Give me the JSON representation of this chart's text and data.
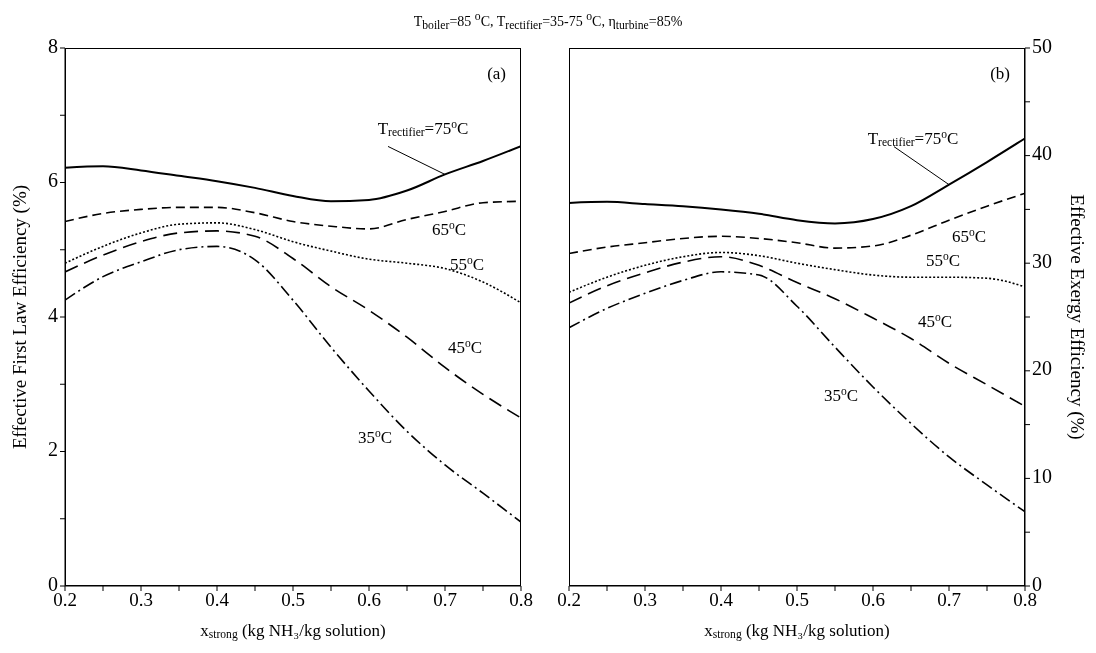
{
  "chart_data": [
    {
      "type": "line",
      "title": "T$_{boiler}$=85 $^{o}$C, T$_{rectifier}$=35-75 $^{o}$C, η$_{turbine}$=85%",
      "xlabel": "x$_{strong}$ (kg NH₃/kg solution)",
      "ylabel": "Effective First Law Efficiency (%)",
      "annotations": [
        "(a)"
      ],
      "x": [
        0.2,
        0.25,
        0.3,
        0.35,
        0.4,
        0.45,
        0.5,
        0.55,
        0.6,
        0.65,
        0.7,
        0.75,
        0.8
      ],
      "xlim": [
        0.2,
        0.8
      ],
      "xticks": [
        0.2,
        {
          "value": 0.25,
          "label": null
        },
        0.3,
        {
          "value": 0.35,
          "label": null
        },
        0.4,
        {
          "value": 0.45,
          "label": null
        },
        0.5,
        {
          "value": 0.55,
          "label": null
        },
        0.6,
        {
          "value": 0.65,
          "label": null
        },
        0.7,
        {
          "value": 0.75,
          "label": null
        },
        0.8
      ],
      "ylim": [
        0,
        8
      ],
      "yticks": [
        0,
        {
          "value": 1,
          "label": null
        },
        2,
        {
          "value": 3,
          "label": null
        },
        4,
        {
          "value": 5,
          "label": null
        },
        6,
        {
          "value": 7,
          "label": null
        },
        8
      ],
      "grid": false,
      "series": [
        {
          "name": "T$_{rectifier}$=75$^{o}$C",
          "color": "#000000",
          "line_style": "solid",
          "values": [
            6.22,
            6.24,
            6.18,
            6.1,
            6.02,
            5.92,
            5.8,
            5.72,
            5.74,
            5.88,
            6.12,
            6.32,
            6.54
          ]
        },
        {
          "name": "65$^{o}$C",
          "color": "#000000",
          "line_style": "dashed",
          "values": [
            5.42,
            5.54,
            5.6,
            5.63,
            5.63,
            5.55,
            5.42,
            5.35,
            5.31,
            5.45,
            5.57,
            5.7,
            5.72
          ]
        },
        {
          "name": "55$^{o}$C",
          "color": "#000000",
          "line_style": "dotted",
          "values": [
            4.8,
            5.05,
            5.25,
            5.38,
            5.4,
            5.3,
            5.12,
            4.98,
            4.86,
            4.8,
            4.72,
            4.52,
            4.21
          ]
        },
        {
          "name": "45$^{o}$C",
          "color": "#000000",
          "line_style": "dashed",
          "values": [
            4.67,
            4.92,
            5.12,
            5.25,
            5.28,
            5.2,
            4.87,
            4.45,
            4.1,
            3.7,
            3.25,
            2.85,
            2.5
          ]
        },
        {
          "name": "35$^{o}$C",
          "color": "#000000",
          "line_style": "dashed",
          "values": [
            4.25,
            4.6,
            4.82,
            5.0,
            5.05,
            4.85,
            4.25,
            3.55,
            2.9,
            2.3,
            1.8,
            1.38,
            0.95
          ]
        }
      ]
    },
    {
      "type": "line",
      "xlabel": "x$_{strong}$ (kg NH₃/kg solution)",
      "ylabel": "Effective Exergy Efficiency (%)",
      "annotations": [
        "(b)"
      ],
      "x": [
        0.2,
        0.25,
        0.3,
        0.35,
        0.4,
        0.45,
        0.5,
        0.55,
        0.6,
        0.65,
        0.7,
        0.75,
        0.8
      ],
      "xlim": [
        0.2,
        0.8
      ],
      "xticks": [
        0.2,
        {
          "value": 0.25,
          "label": null
        },
        0.3,
        {
          "value": 0.35,
          "label": null
        },
        0.4,
        {
          "value": 0.45,
          "label": null
        },
        0.5,
        {
          "value": 0.55,
          "label": null
        },
        0.6,
        {
          "value": 0.65,
          "label": null
        },
        0.7,
        {
          "value": 0.75,
          "label": null
        },
        0.8
      ],
      "ylim": [
        0,
        50
      ],
      "yticks": [
        0,
        {
          "value": 5,
          "label": null
        },
        10,
        {
          "value": 15,
          "label": null
        },
        20,
        {
          "value": 25,
          "label": null
        },
        30,
        {
          "value": 35,
          "label": null
        },
        40,
        {
          "value": 45,
          "label": null
        },
        50
      ],
      "grid": false,
      "series": [
        {
          "name": "T$_{rectifier}$=75$^{o}$C",
          "color": "#000000",
          "line_style": "solid",
          "values": [
            35.6,
            35.7,
            35.5,
            35.3,
            35.0,
            34.6,
            34.0,
            33.7,
            34.1,
            35.3,
            37.3,
            39.4,
            41.6
          ]
        },
        {
          "name": "65$^{o}$C",
          "color": "#000000",
          "line_style": "dashed",
          "values": [
            30.9,
            31.5,
            31.9,
            32.3,
            32.5,
            32.3,
            31.9,
            31.4,
            31.6,
            32.6,
            34.0,
            35.3,
            36.5
          ]
        },
        {
          "name": "55$^{o}$C",
          "color": "#000000",
          "line_style": "dotted",
          "values": [
            27.3,
            28.7,
            29.8,
            30.6,
            31.0,
            30.7,
            30.0,
            29.4,
            28.9,
            28.7,
            28.7,
            28.6,
            27.8
          ]
        },
        {
          "name": "45$^{o}$C",
          "color": "#000000",
          "line_style": "dashed",
          "values": [
            26.3,
            27.9,
            29.1,
            30.1,
            30.6,
            29.8,
            28.2,
            26.7,
            24.9,
            23.0,
            20.7,
            18.7,
            16.7
          ]
        },
        {
          "name": "35$^{o}$C",
          "color": "#000000",
          "line_style": "dashed",
          "values": [
            24.0,
            25.8,
            27.2,
            28.4,
            29.2,
            28.9,
            26.0,
            22.2,
            18.5,
            15.1,
            12.0,
            9.4,
            6.9
          ]
        }
      ]
    }
  ]
}
